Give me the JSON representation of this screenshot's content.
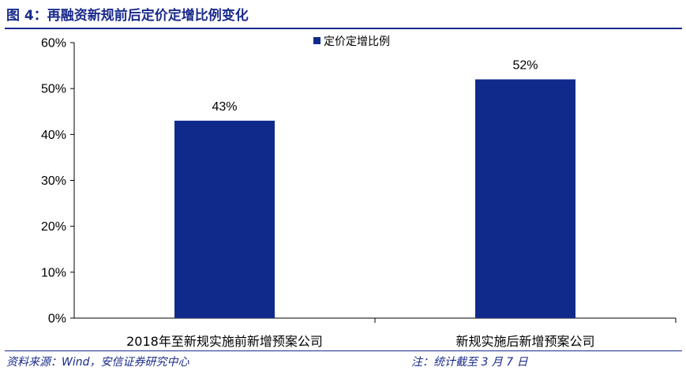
{
  "header": {
    "title": "图 4：再融资新规前后定价定增比例变化"
  },
  "footer": {
    "source": "资料来源：Wind，安信证券研究中心",
    "note": "注：统计截至 3 月 7 日"
  },
  "colors": {
    "bar": "#102a8c",
    "brand": "#1a2a8c"
  },
  "chart_data": {
    "type": "bar",
    "categories": [
      "2018年至新规实施前新增预案公司",
      "新规实施后新增预案公司"
    ],
    "series": [
      {
        "name": "定价定增比例",
        "values": [
          43,
          52
        ]
      }
    ],
    "data_labels": [
      "43%",
      "52%"
    ],
    "y_ticks": [
      "0%",
      "10%",
      "20%",
      "30%",
      "40%",
      "50%",
      "60%"
    ],
    "ylim": [
      0,
      60
    ],
    "y_step": 10,
    "grid": false,
    "legend_position": "top-center"
  }
}
